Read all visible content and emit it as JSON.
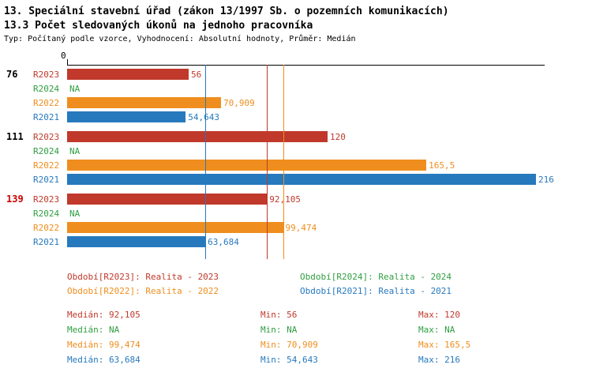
{
  "title": {
    "line1": "13. Speciální stavební úřad (zákon 13/1997 Sb. o pozemních komunikacích)",
    "line2": "13.3 Počet sledovaných úkonů na jednoho pracovníka",
    "line3": "Typ: Počítaný podle vzorce, Vyhodnocení: Absolutní hodnoty, Průměr: Medián"
  },
  "colors": {
    "R2023": "#c0392b",
    "R2024": "#2f9e41",
    "R2022": "#ef8e1e",
    "R2021": "#2779bd",
    "axis": "#000000"
  },
  "chart_data": {
    "type": "bar",
    "orientation": "horizontal",
    "axis_zero_label": "0",
    "xlim": [
      0,
      220
    ],
    "series_order": [
      "R2023",
      "R2024",
      "R2022",
      "R2021"
    ],
    "groups": [
      {
        "label": "76",
        "label_color": "#000000",
        "bars": [
          {
            "series": "R2023",
            "value": 56,
            "display": "56"
          },
          {
            "series": "R2024",
            "value": null,
            "display": "NA"
          },
          {
            "series": "R2022",
            "value": 70.909,
            "display": "70,909"
          },
          {
            "series": "R2021",
            "value": 54.643,
            "display": "54,643"
          }
        ]
      },
      {
        "label": "111",
        "label_color": "#000000",
        "bars": [
          {
            "series": "R2023",
            "value": 120,
            "display": "120"
          },
          {
            "series": "R2024",
            "value": null,
            "display": "NA"
          },
          {
            "series": "R2022",
            "value": 165.5,
            "display": "165,5"
          },
          {
            "series": "R2021",
            "value": 216,
            "display": "216"
          }
        ]
      },
      {
        "label": "139",
        "label_color": "#cc0000",
        "bars": [
          {
            "series": "R2023",
            "value": 92.105,
            "display": "92,105"
          },
          {
            "series": "R2024",
            "value": null,
            "display": "NA"
          },
          {
            "series": "R2022",
            "value": 99.474,
            "display": "99,474"
          },
          {
            "series": "R2021",
            "value": 63.684,
            "display": "63,684"
          }
        ]
      }
    ],
    "median_lines": [
      {
        "series": "R2021",
        "value": 63.684
      },
      {
        "series": "R2023",
        "value": 92.105
      },
      {
        "series": "R2022",
        "value": 99.474
      }
    ]
  },
  "legend": [
    {
      "series": "R2023",
      "text": "Období[R2023]: Realita - 2023"
    },
    {
      "series": "R2024",
      "text": "Období[R2024]: Realita - 2024"
    },
    {
      "series": "R2022",
      "text": "Období[R2022]: Realita - 2022"
    },
    {
      "series": "R2021",
      "text": "Období[R2021]: Realita - 2021"
    }
  ],
  "stats": [
    {
      "series": "R2023",
      "median": "Medián: 92,105",
      "min": "Min: 56",
      "max": "Max: 120"
    },
    {
      "series": "R2024",
      "median": "Medián: NA",
      "min": "Min: NA",
      "max": "Max: NA"
    },
    {
      "series": "R2022",
      "median": "Medián: 99,474",
      "min": "Min: 70,909",
      "max": "Max: 165,5"
    },
    {
      "series": "R2021",
      "median": "Medián: 63,684",
      "min": "Min: 54,643",
      "max": "Max: 216"
    }
  ]
}
